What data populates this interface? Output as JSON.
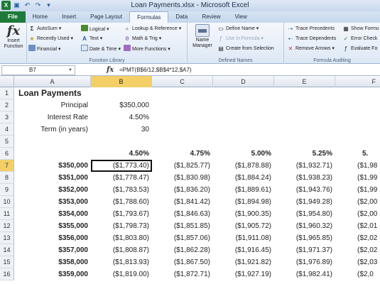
{
  "window": {
    "title": "Loan Payments.xlsx - Microsoft Excel",
    "qat_icons": [
      "excel-logo-icon",
      "save-icon",
      "undo-icon",
      "redo-icon",
      "customize-icon"
    ]
  },
  "tabs": [
    "File",
    "Home",
    "Insert",
    "Page Layout",
    "Formulas",
    "Data",
    "Review",
    "View"
  ],
  "active_tab": "Formulas",
  "ribbon": {
    "insert_function": {
      "glyph": "fx",
      "label1": "Insert",
      "label2": "Function"
    },
    "function_library": {
      "label": "Function Library",
      "autosum": "AutoSum",
      "recently_used": "Recently Used",
      "financial": "Financial",
      "logical": "Logical",
      "text": "Text",
      "date_time": "Date & Time",
      "lookup_reference": "Lookup & Reference",
      "math_trig": "Math & Trig",
      "more_functions": "More Functions"
    },
    "defined_names": {
      "label": "Defined Names",
      "name_manager1": "Name",
      "name_manager2": "Manager",
      "define_name": "Define Name",
      "use_in_formula": "Use in Formula",
      "create_from_selection": "Create from Selection"
    },
    "formula_auditing": {
      "label": "Formula Auditing",
      "trace_precedents": "Trace Precedents",
      "trace_dependents": "Trace Dependents",
      "remove_arrows": "Remove Arrows",
      "show_formulas": "Show Formu",
      "error_checking": "Error Check",
      "evaluate_formula": "Evaluate Fo"
    }
  },
  "formula_bar": {
    "name_box": "B7",
    "fx": "fx",
    "formula": "=PMT(B$6/12,$B$4*12,$A7)"
  },
  "columns": [
    "A",
    "B",
    "C",
    "D",
    "E",
    "F"
  ],
  "selected_column": "B",
  "selected_row": "7",
  "row_numbers": [
    "1",
    "2",
    "3",
    "4",
    "5",
    "6",
    "7",
    "8",
    "9",
    "10",
    "11",
    "12",
    "13",
    "14",
    "15",
    "16"
  ],
  "sheet": {
    "title": "Loan Payments",
    "principal_label": "Principal",
    "principal_value": "$350,000",
    "rate_label": "Interest Rate",
    "rate_value": "4.50%",
    "term_label": "Term (in years)",
    "term_value": "30",
    "rates": [
      "4.50%",
      "4.75%",
      "5.00%",
      "5.25%",
      "5."
    ],
    "principals": [
      "$350,000",
      "$351,000",
      "$352,000",
      "$353,000",
      "$354,000",
      "$355,000",
      "$356,000",
      "$357,000",
      "$358,000",
      "$359,000"
    ],
    "payments": [
      [
        "($1,773.40)",
        "($1,825.77)",
        "($1,878.88)",
        "($1,932.71)",
        "($1,98"
      ],
      [
        "($1,778.47)",
        "($1,830.98)",
        "($1,884.24)",
        "($1,938.23)",
        "($1,99"
      ],
      [
        "($1,783.53)",
        "($1,836.20)",
        "($1,889.61)",
        "($1,943.76)",
        "($1,99"
      ],
      [
        "($1,788.60)",
        "($1,841.42)",
        "($1,894.98)",
        "($1,949.28)",
        "($2,00"
      ],
      [
        "($1,793.67)",
        "($1,846.63)",
        "($1,900.35)",
        "($1,954.80)",
        "($2,00"
      ],
      [
        "($1,798.73)",
        "($1,851.85)",
        "($1,905.72)",
        "($1,960.32)",
        "($2,01"
      ],
      [
        "($1,803.80)",
        "($1,857.06)",
        "($1,911.08)",
        "($1,965.85)",
        "($2,02"
      ],
      [
        "($1,808.87)",
        "($1,862.28)",
        "($1,916.45)",
        "($1,971.37)",
        "($2,02"
      ],
      [
        "($1,813.93)",
        "($1,867.50)",
        "($1,921.82)",
        "($1,976.89)",
        "($2,03"
      ],
      [
        "($1,819.00)",
        "($1,872.71)",
        "($1,927.19)",
        "($1,982.41)",
        "($2,0"
      ]
    ]
  }
}
